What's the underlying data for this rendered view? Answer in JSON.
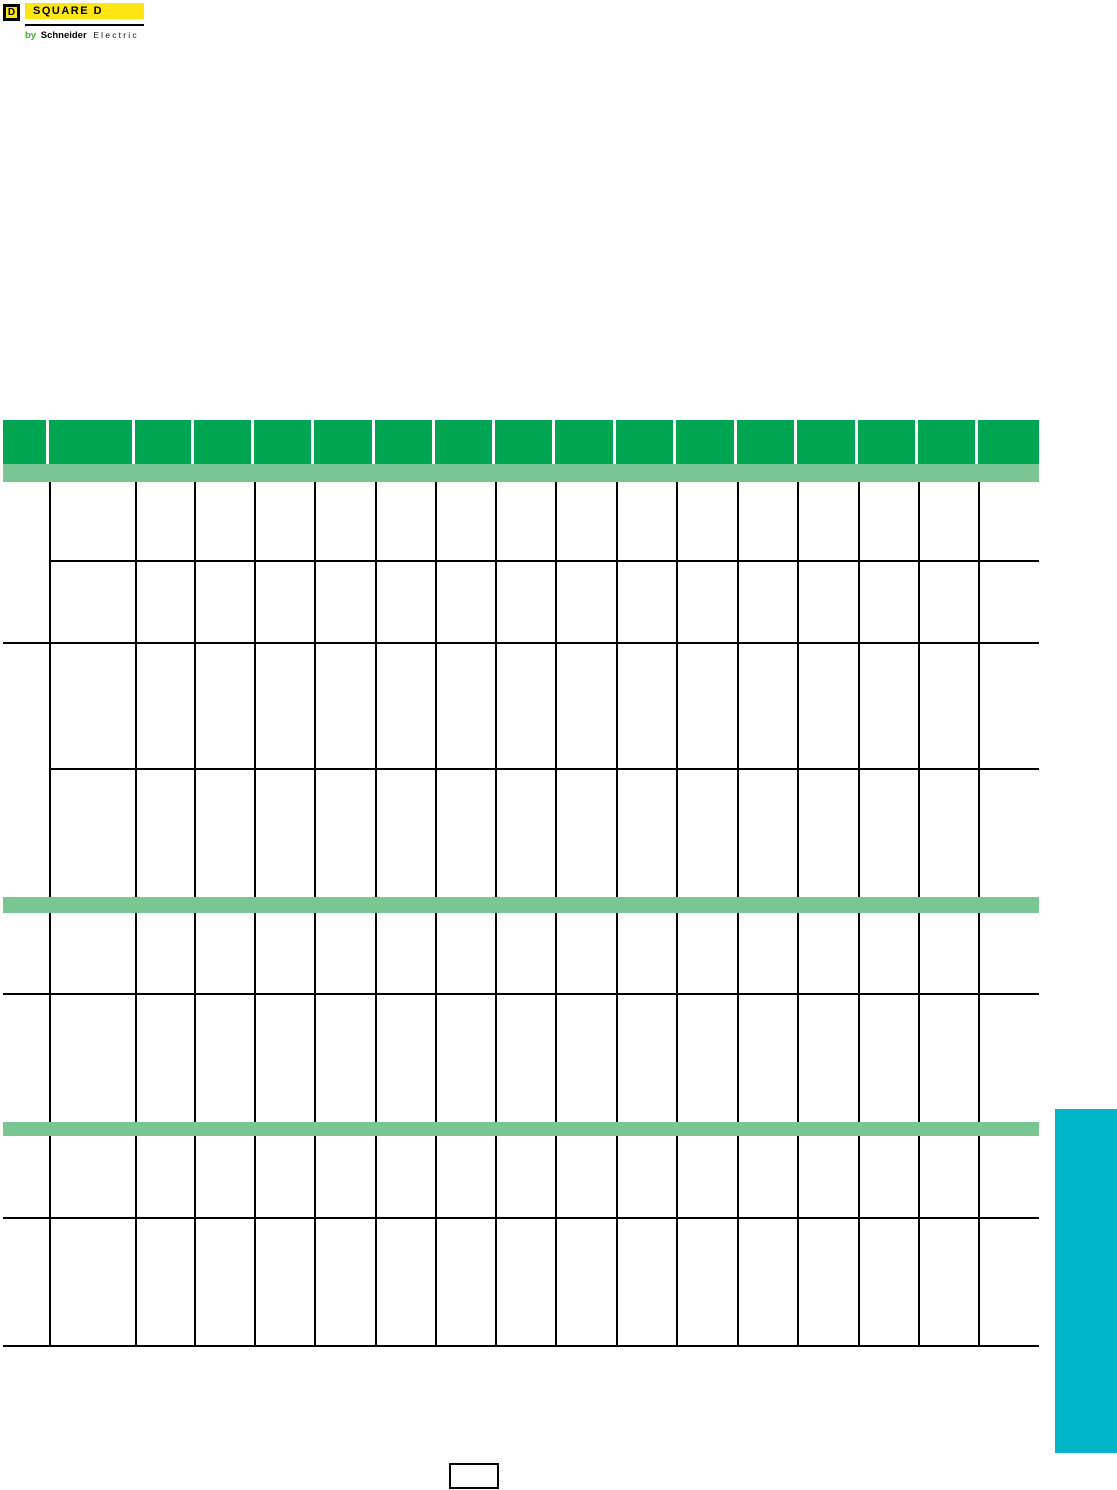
{
  "logo": {
    "mark_letter": "D",
    "wordmark": "SQUARE D",
    "tagline_by": "by",
    "tagline_brand": "Schneider",
    "tagline_suffix": "Electric"
  },
  "table": {
    "column_count": 17,
    "header_labels": [
      "",
      "",
      "",
      "",
      "",
      "",
      "",
      "",
      "",
      "",
      "",
      "",
      "",
      "",
      "",
      "",
      ""
    ]
  },
  "page_footer": {
    "page_number": ""
  },
  "colors": {
    "header-green": "#00a551",
    "band-green": "#79c692",
    "teal": "#00b6c8",
    "brand-yellow": "#ffe512",
    "tagline-green": "#3dae2b",
    "line-black": "#000000"
  }
}
